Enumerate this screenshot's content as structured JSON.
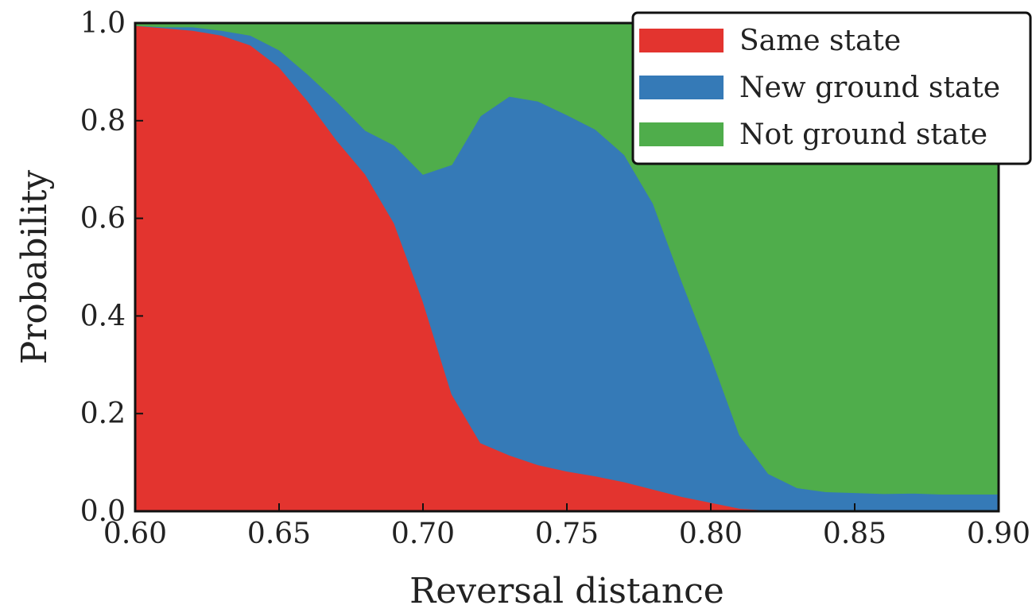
{
  "chart_data": {
    "type": "area",
    "stacked": true,
    "title": "",
    "xlabel": "Reversal distance",
    "ylabel": "Probability",
    "xlim": [
      0.6,
      0.9
    ],
    "ylim": [
      0.0,
      1.0
    ],
    "xticks": [
      "0.60",
      "0.65",
      "0.70",
      "0.75",
      "0.80",
      "0.85",
      "0.90"
    ],
    "yticks": [
      "0.0",
      "0.2",
      "0.4",
      "0.6",
      "0.8",
      "1.0"
    ],
    "grid": false,
    "legend": {
      "position": "top-right"
    },
    "x": [
      0.6,
      0.61,
      0.62,
      0.63,
      0.64,
      0.65,
      0.66,
      0.67,
      0.68,
      0.69,
      0.7,
      0.71,
      0.72,
      0.73,
      0.74,
      0.75,
      0.76,
      0.77,
      0.78,
      0.79,
      0.8,
      0.81,
      0.82,
      0.83,
      0.84,
      0.85,
      0.86,
      0.87,
      0.88,
      0.89,
      0.9
    ],
    "series": [
      {
        "name": "Same state",
        "color": "#e3342f",
        "values": [
          0.995,
          0.99,
          0.985,
          0.975,
          0.955,
          0.91,
          0.84,
          0.76,
          0.69,
          0.59,
          0.43,
          0.24,
          0.14,
          0.115,
          0.095,
          0.082,
          0.072,
          0.06,
          0.045,
          0.03,
          0.018,
          0.006,
          0.002,
          0.001,
          0.0,
          0.0,
          0.0,
          0.0,
          0.0,
          0.0,
          0.0
        ]
      },
      {
        "name": "New ground state",
        "color": "#357ab7",
        "values": [
          0.0,
          0.002,
          0.007,
          0.01,
          0.02,
          0.035,
          0.055,
          0.08,
          0.09,
          0.16,
          0.26,
          0.47,
          0.67,
          0.735,
          0.745,
          0.73,
          0.71,
          0.67,
          0.585,
          0.44,
          0.3,
          0.15,
          0.075,
          0.047,
          0.04,
          0.038,
          0.036,
          0.037,
          0.035,
          0.035,
          0.035
        ]
      },
      {
        "name": "Not ground state",
        "color": "#4fad4b",
        "values": [
          0.005,
          0.008,
          0.008,
          0.015,
          0.025,
          0.055,
          0.105,
          0.16,
          0.22,
          0.25,
          0.31,
          0.29,
          0.19,
          0.15,
          0.16,
          0.188,
          0.218,
          0.27,
          0.37,
          0.53,
          0.682,
          0.844,
          0.923,
          0.952,
          0.96,
          0.962,
          0.964,
          0.963,
          0.965,
          0.965,
          0.965
        ]
      }
    ]
  }
}
